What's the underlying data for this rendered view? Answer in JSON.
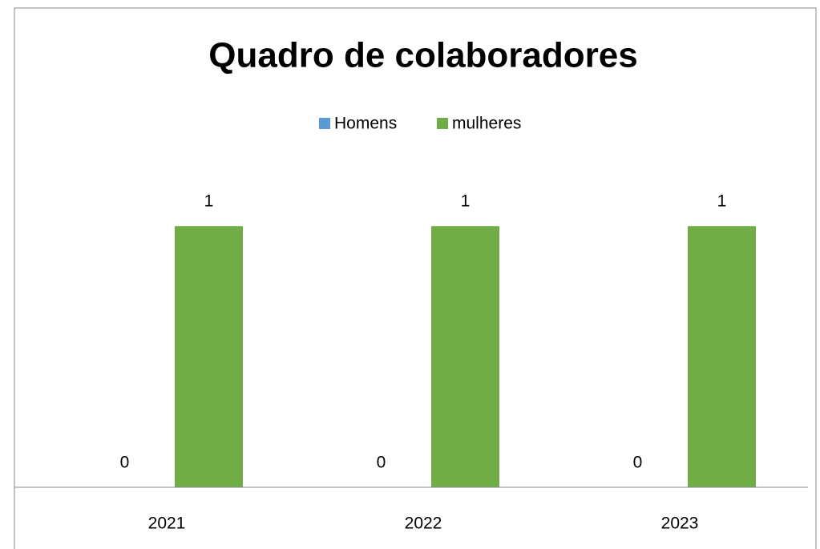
{
  "chart_data": {
    "type": "bar",
    "title": "Quadro de colaboradores",
    "categories": [
      "2021",
      "2022",
      "2023"
    ],
    "series": [
      {
        "name": "Homens",
        "color": "#5b9bd5",
        "values": [
          0,
          0,
          0
        ]
      },
      {
        "name": "mulheres",
        "color": "#70ad47",
        "values": [
          1,
          1,
          1
        ]
      }
    ],
    "ylim": [
      0,
      1.2
    ],
    "legend": "top",
    "grid": false
  }
}
